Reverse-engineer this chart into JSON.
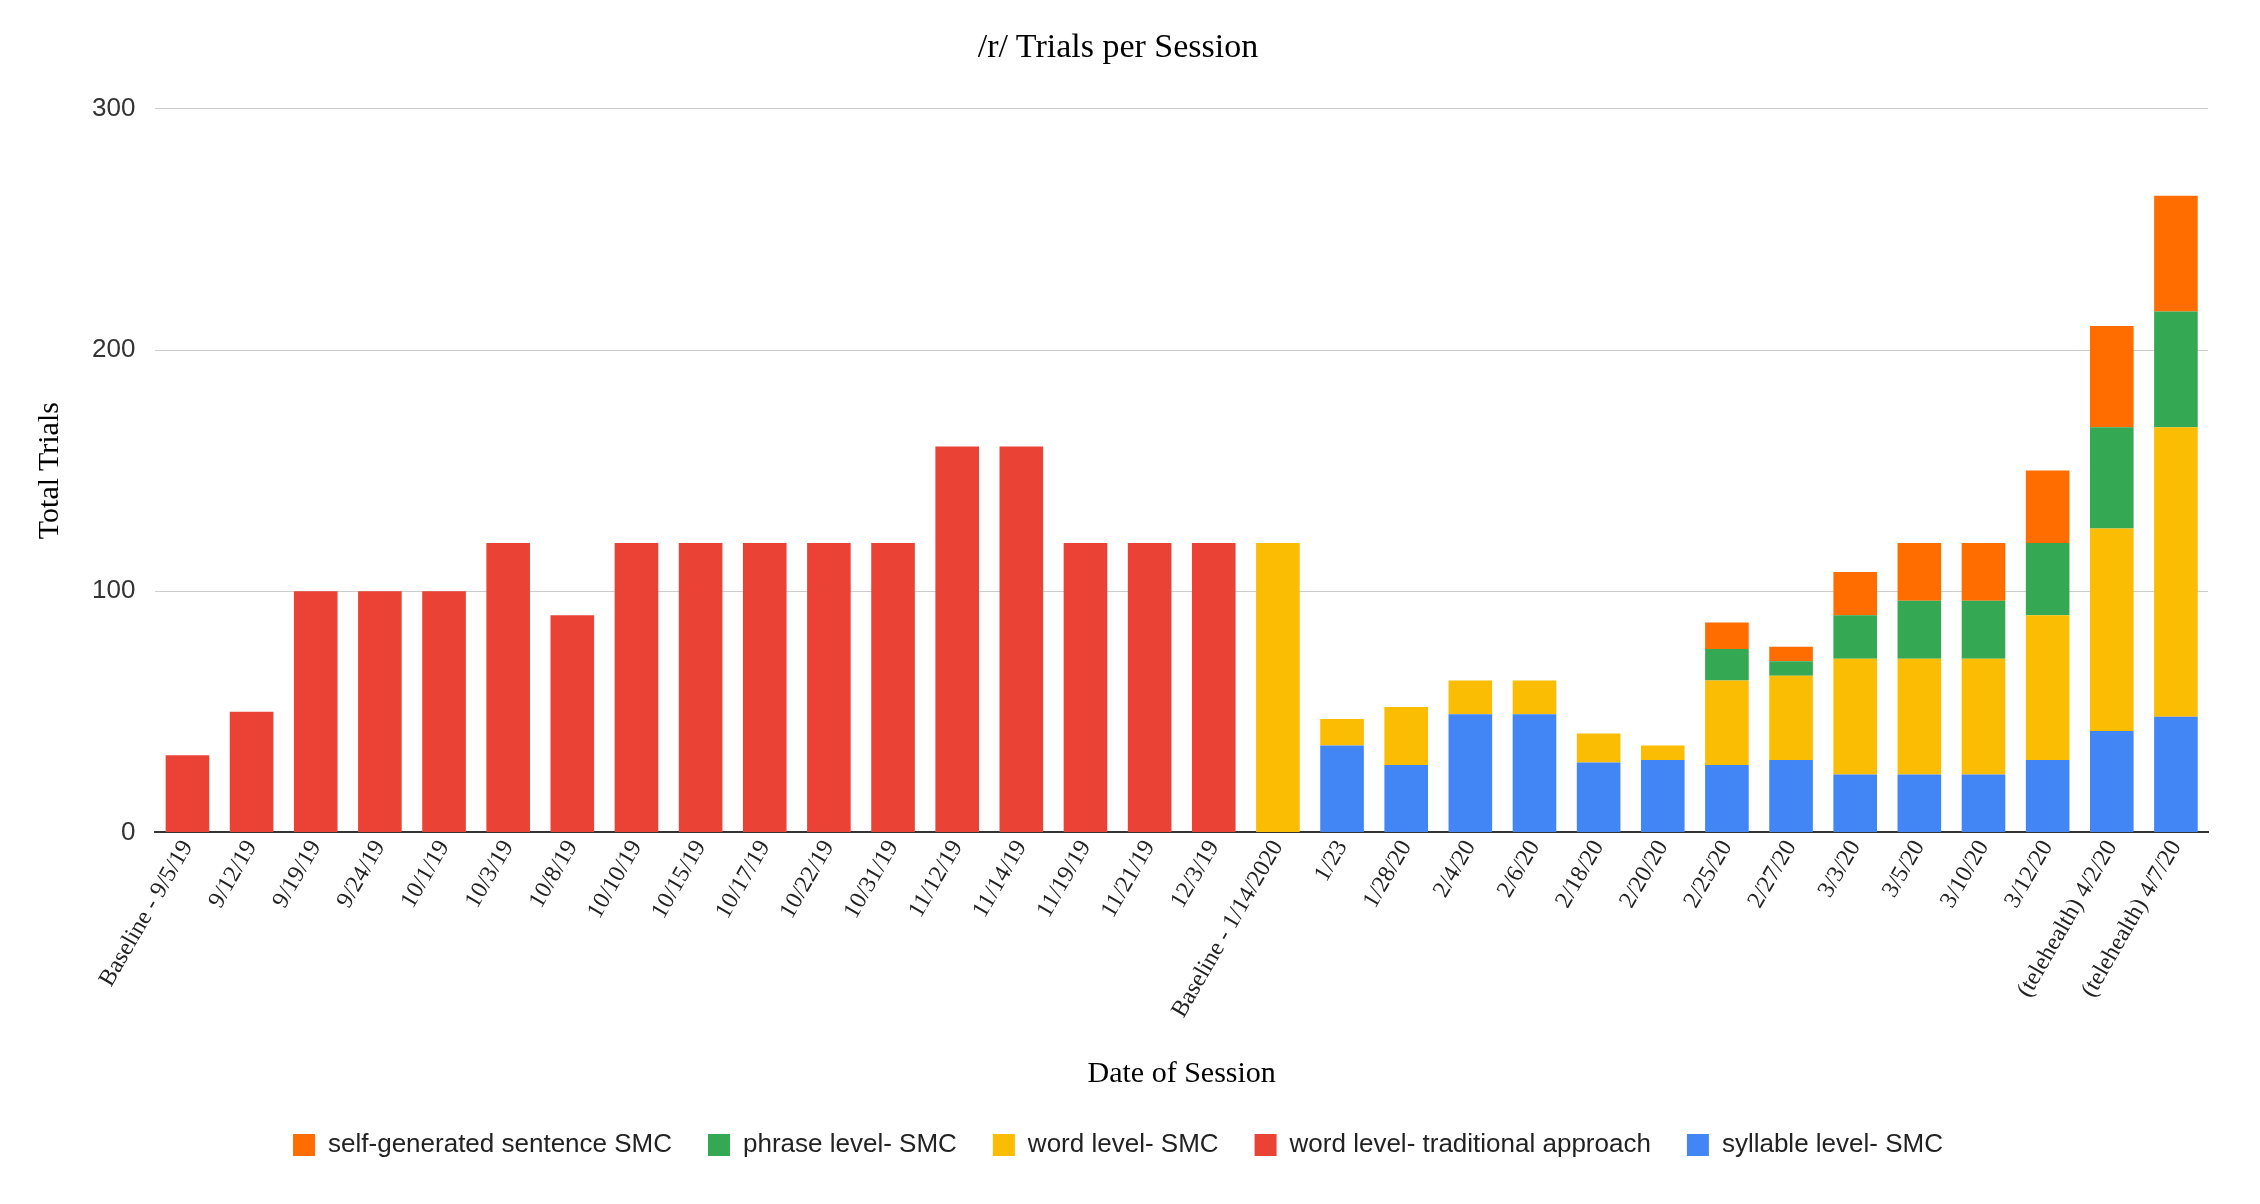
{
  "chart_data": {
    "type": "bar",
    "title": "/r/ Trials per Session",
    "xlabel": "Date of Session",
    "ylabel": "Total Trials",
    "stacked": true,
    "grid": "y",
    "legend": "bottom",
    "ylim": [
      0,
      300
    ],
    "yticks": [
      0,
      100,
      200,
      300
    ],
    "categories": [
      "Baseline - 9/5/19",
      "9/12/19",
      "9/19/19",
      "9/24/19",
      "10/1/19",
      "10/3/19",
      "10/8/19",
      "10/10/19",
      "10/15/19",
      "10/17/19",
      "10/22/19",
      "10/31/19",
      "11/12/19",
      "11/14/19",
      "11/19/19",
      "11/21/19",
      "12/3/19",
      "Baseline - 1/14/2020",
      "1/23",
      "1/28/20",
      "2/4/20",
      "2/6/20",
      "2/18/20",
      "2/20/20",
      "2/25/20",
      "2/27/20",
      "3/3/20",
      "3/5/20",
      "3/10/20",
      "3/12/20",
      "(telehealth) 4/2/20",
      "(telehealth) 4/7/20"
    ],
    "series": [
      {
        "name": "syllable level- SMC",
        "color": "#4285f4",
        "values": [
          null,
          null,
          null,
          null,
          null,
          null,
          null,
          null,
          null,
          null,
          null,
          null,
          null,
          null,
          null,
          null,
          null,
          null,
          36,
          28,
          49,
          49,
          29,
          30,
          28,
          30,
          24,
          24,
          24,
          30,
          42,
          48
        ]
      },
      {
        "name": "word level- traditional approach",
        "color": "#ea4335",
        "values": [
          32,
          50,
          100,
          100,
          100,
          120,
          90,
          120,
          120,
          120,
          120,
          120,
          160,
          160,
          120,
          120,
          120,
          null,
          null,
          null,
          null,
          null,
          null,
          null,
          null,
          null,
          null,
          null,
          null,
          null,
          null,
          null
        ]
      },
      {
        "name": "word level- SMC",
        "color": "#fbbc04",
        "values": [
          null,
          null,
          null,
          null,
          null,
          null,
          null,
          null,
          null,
          null,
          null,
          null,
          null,
          null,
          null,
          null,
          null,
          120,
          11,
          24,
          14,
          14,
          12,
          6,
          35,
          35,
          48,
          48,
          48,
          60,
          84,
          120
        ]
      },
      {
        "name": "phrase level- SMC",
        "color": "#34a853",
        "values": [
          null,
          null,
          null,
          null,
          null,
          null,
          null,
          null,
          null,
          null,
          null,
          null,
          null,
          null,
          null,
          null,
          null,
          null,
          null,
          null,
          null,
          null,
          null,
          null,
          13,
          6,
          18,
          24,
          24,
          30,
          42,
          48
        ]
      },
      {
        "name": "self-generated sentence SMC",
        "color": "#ff6d01",
        "values": [
          null,
          null,
          null,
          null,
          null,
          null,
          null,
          null,
          null,
          null,
          null,
          null,
          null,
          null,
          null,
          null,
          null,
          null,
          null,
          null,
          null,
          null,
          null,
          null,
          11,
          6,
          18,
          24,
          24,
          30,
          42,
          48
        ]
      }
    ]
  }
}
